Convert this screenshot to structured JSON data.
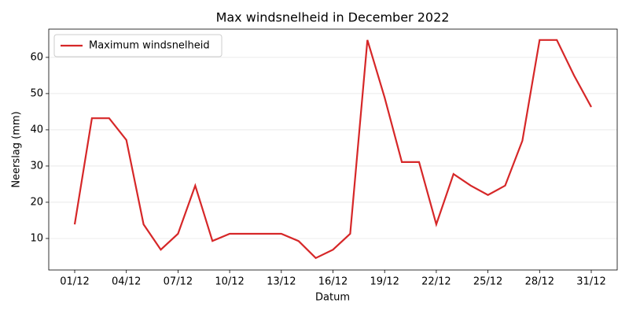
{
  "chart_data": {
    "type": "line",
    "title": "Max windsnelheid in December 2022",
    "x_label": "Datum",
    "y_label": "Neerslag (mm)",
    "categories": [
      "01/12",
      null,
      null,
      "04/12",
      null,
      null,
      "07/12",
      null,
      null,
      "10/12",
      null,
      null,
      "13/12",
      null,
      null,
      "16/12",
      null,
      null,
      "19/12",
      null,
      null,
      "22/12",
      null,
      null,
      "25/12",
      null,
      null,
      "28/12",
      null,
      null,
      "31/12"
    ],
    "series": [
      {
        "name": "Maximum windsnelheid",
        "color": "#d62728",
        "values": [
          13.9,
          43.2,
          43.2,
          37.2,
          13.9,
          6.9,
          11.3,
          24.6,
          9.3,
          11.3,
          11.3,
          11.3,
          11.3,
          9.3,
          4.6,
          6.9,
          11.3,
          64.8,
          48.9,
          31.1,
          31.1,
          13.9,
          27.8,
          24.6,
          22.0,
          24.6,
          37.0,
          64.8,
          64.8,
          55.0,
          46.3
        ]
      }
    ],
    "ylim": [
      1.3,
      67.8
    ],
    "yticks": [
      10,
      20,
      30,
      40,
      50,
      60
    ],
    "grid": true,
    "legend": "upper left"
  }
}
